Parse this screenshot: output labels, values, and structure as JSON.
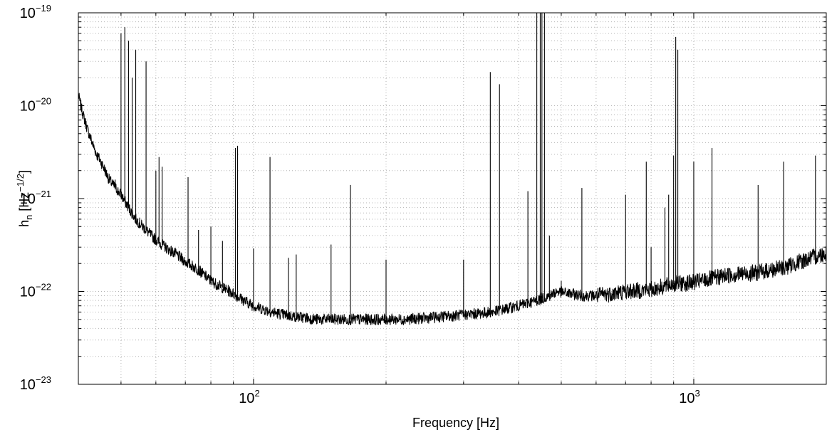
{
  "chart_data": {
    "type": "line",
    "xscale": "log",
    "yscale": "log",
    "xlim": [
      40,
      2000
    ],
    "ylim": [
      1e-23,
      1e-19
    ],
    "grid": true,
    "xlabel": "Frequency [Hz]",
    "ylabel": {
      "main": "h",
      "sub": "n",
      "unit_open": " [Hz",
      "unit_exp": "−1/2",
      "unit_close": "]"
    },
    "x_ticks": [
      {
        "value": 100,
        "base": "10",
        "exp": "2"
      },
      {
        "value": 1000,
        "base": "10",
        "exp": "3"
      }
    ],
    "y_ticks": [
      {
        "value": 1e-19,
        "base": "10",
        "exp": "−19"
      },
      {
        "value": 1e-20,
        "base": "10",
        "exp": "−20"
      },
      {
        "value": 1e-21,
        "base": "10",
        "exp": "−21"
      },
      {
        "value": 1e-22,
        "base": "10",
        "exp": "−22"
      },
      {
        "value": 1e-23,
        "base": "10",
        "exp": "−23"
      }
    ],
    "series": [
      {
        "x": [
          40,
          41,
          42,
          43,
          44,
          45,
          46,
          47,
          48,
          50,
          52,
          54,
          56,
          58,
          60,
          63,
          66,
          70,
          75,
          80,
          85,
          90,
          95,
          100,
          110,
          120,
          140,
          160,
          180,
          200,
          220,
          250,
          300,
          350,
          400,
          440,
          470,
          490,
          520,
          560,
          600,
          700,
          800,
          900,
          1000,
          1200,
          1400,
          1600,
          1800,
          2000
        ],
        "y": [
          1.3e-20,
          8e-21,
          5.5e-21,
          4e-21,
          3e-21,
          2.5e-21,
          2e-21,
          1.6e-21,
          1.4e-21,
          1.1e-21,
          8e-22,
          6e-22,
          5e-22,
          4.2e-22,
          3.6e-22,
          3e-22,
          2.6e-22,
          2.1e-22,
          1.7e-22,
          1.3e-22,
          1.1e-22,
          9.5e-23,
          8e-23,
          7e-23,
          6e-23,
          5.5e-23,
          5e-23,
          5e-23,
          5e-23,
          5e-23,
          5e-23,
          5.2e-23,
          5.6e-23,
          6e-23,
          7e-23,
          8e-23,
          9e-23,
          1e-22,
          9.5e-23,
          9e-23,
          9e-23,
          1e-22,
          1.05e-22,
          1.2e-22,
          1.25e-22,
          1.5e-22,
          1.6e-22,
          1.8e-22,
          2.2e-22,
          2.6e-22
        ]
      }
    ],
    "peaks": [
      [
        48.5,
        1.6e-21
      ],
      [
        50,
        6e-20
      ],
      [
        51,
        7e-20
      ],
      [
        52,
        5e-20
      ],
      [
        53,
        2e-20
      ],
      [
        54,
        4e-20
      ],
      [
        57,
        3e-20
      ],
      [
        60,
        2e-21
      ],
      [
        61,
        2.8e-21
      ],
      [
        62,
        2.2e-21
      ],
      [
        71,
        1.7e-21
      ],
      [
        75,
        4.6e-22
      ],
      [
        80,
        5e-22
      ],
      [
        85,
        3.5e-22
      ],
      [
        91,
        3.5e-21
      ],
      [
        92,
        3.7e-21
      ],
      [
        100,
        2.9e-22
      ],
      [
        109,
        2.8e-21
      ],
      [
        120,
        2.3e-22
      ],
      [
        125,
        2.5e-22
      ],
      [
        150,
        3.2e-22
      ],
      [
        166,
        1.4e-21
      ],
      [
        200,
        2.2e-22
      ],
      [
        300,
        2.2e-22
      ],
      [
        345,
        2.3e-20
      ],
      [
        362,
        1.7e-20
      ],
      [
        420,
        1.2e-21
      ],
      [
        440,
        1e-19
      ],
      [
        448,
        1e-19
      ],
      [
        452,
        1e-19
      ],
      [
        458,
        1e-19
      ],
      [
        470,
        4e-22
      ],
      [
        500,
        1.3e-22
      ],
      [
        557,
        1.3e-21
      ],
      [
        700,
        1.1e-21
      ],
      [
        780,
        2.5e-21
      ],
      [
        800,
        3e-22
      ],
      [
        860,
        8e-22
      ],
      [
        877,
        1.1e-21
      ],
      [
        900,
        2.9e-21
      ],
      [
        910,
        5.5e-20
      ],
      [
        920,
        4e-20
      ],
      [
        1000,
        2.5e-21
      ],
      [
        1100,
        3.5e-21
      ],
      [
        1400,
        1.4e-21
      ],
      [
        1600,
        2.5e-21
      ],
      [
        1890,
        2.9e-21
      ]
    ]
  }
}
